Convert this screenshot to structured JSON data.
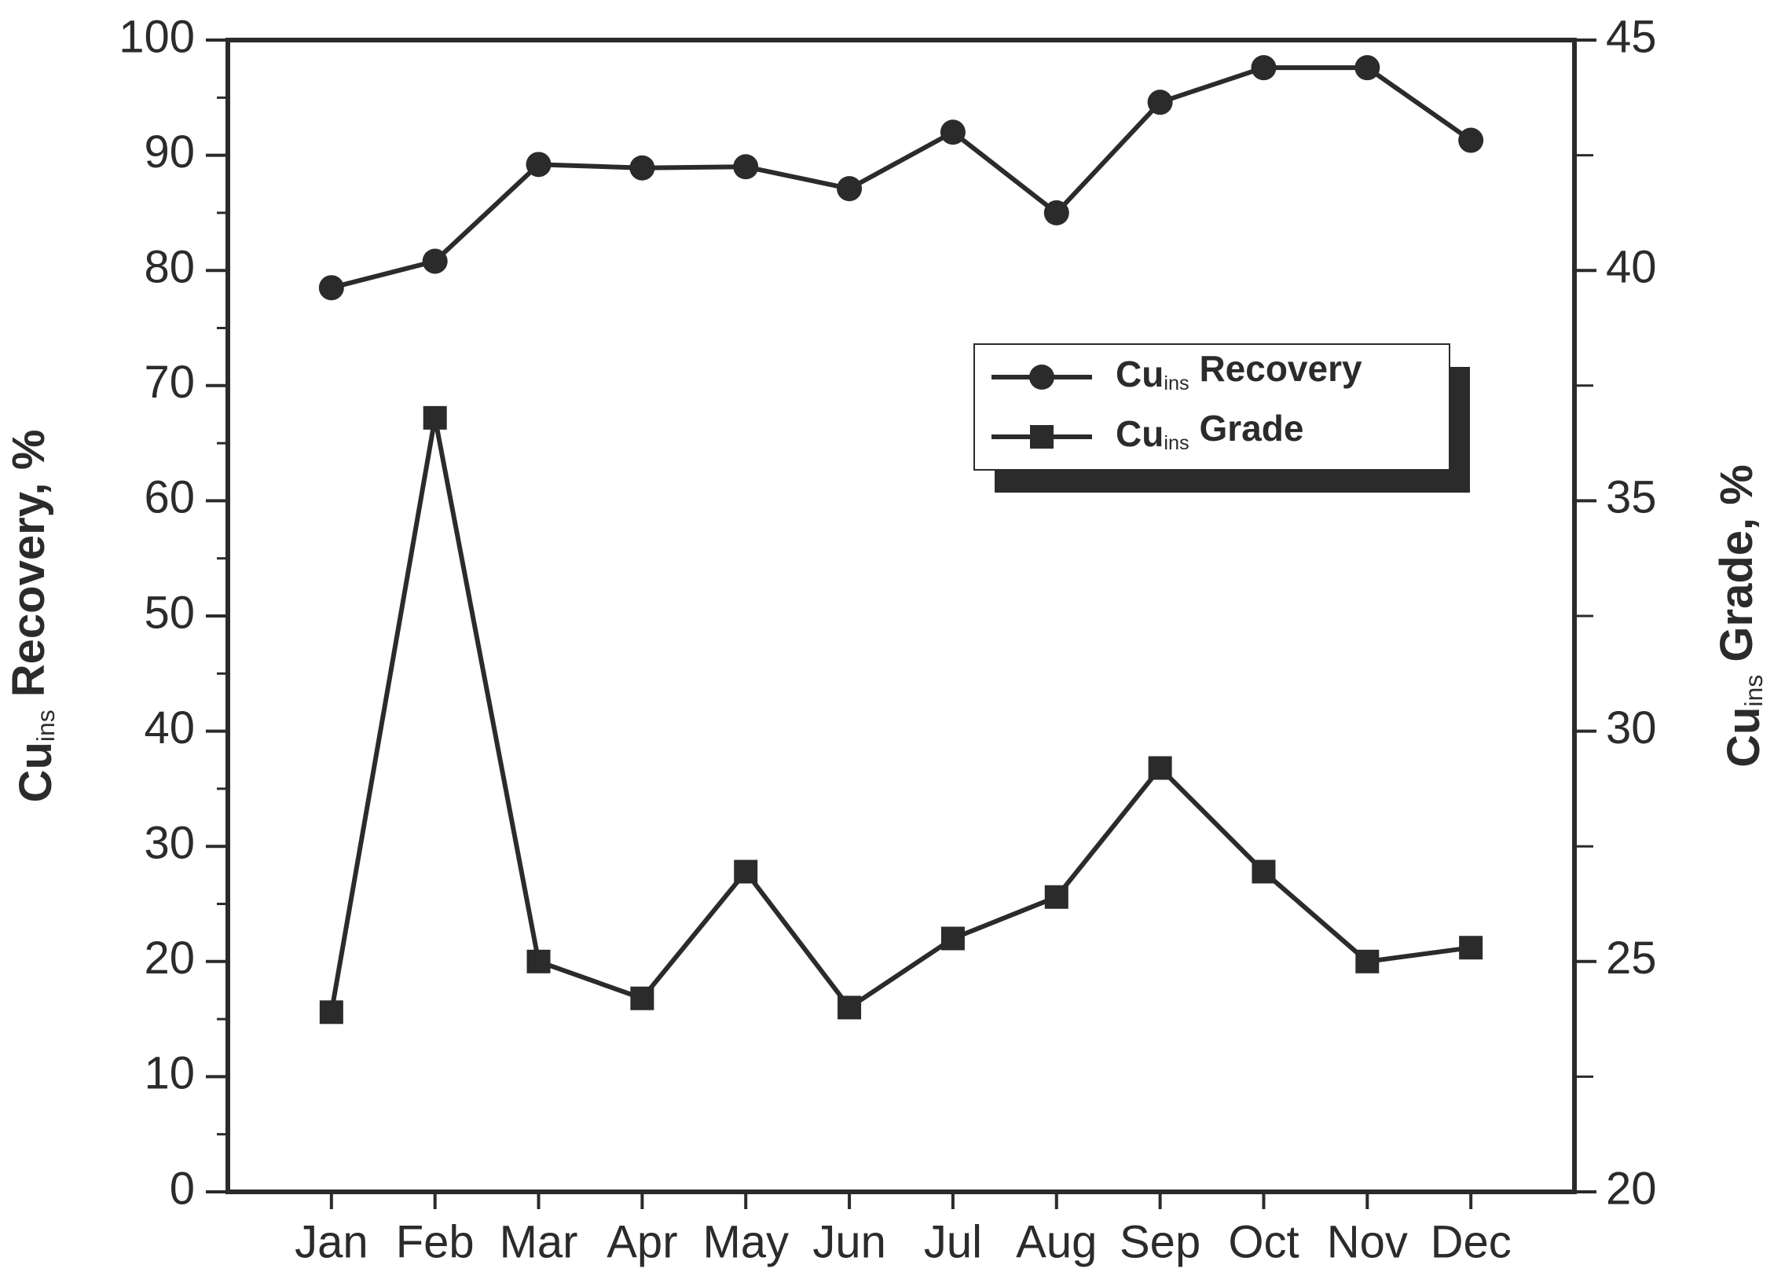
{
  "chart_data": {
    "type": "line",
    "y_label": "Cuins Recovery, %",
    "y2_label": "Cuins Grade, %",
    "categories": [
      "Jan",
      "Feb",
      "Mar",
      "Apr",
      "May",
      "Jun",
      "Jul",
      "Aug",
      "Sep",
      "Oct",
      "Nov",
      "Dec"
    ],
    "series": [
      {
        "name": "Cuins Recovery",
        "color": "#2b2b2b",
        "marker": "circle",
        "values": [
          78.5,
          80.8,
          89.2,
          88.9,
          89.0,
          87.1,
          92.0,
          85.0,
          94.6,
          97.6,
          97.6,
          91.3
        ]
      },
      {
        "name": "Cuins Grade",
        "color": "#2b2b2b",
        "marker": "square",
        "axis": "y2",
        "values": [
          23.9,
          36.8,
          25.0,
          24.2,
          26.95,
          24.0,
          25.5,
          26.4,
          29.2,
          26.95,
          25.0,
          25.3
        ]
      }
    ],
    "ylim": [
      0,
      100
    ],
    "yticks": [
      0,
      10,
      20,
      30,
      40,
      50,
      60,
      70,
      80,
      90,
      100
    ],
    "y2lim": [
      20,
      45
    ],
    "y2ticks": [
      20,
      25,
      30,
      35,
      40,
      45
    ],
    "grid": false,
    "legend": "upper right"
  }
}
